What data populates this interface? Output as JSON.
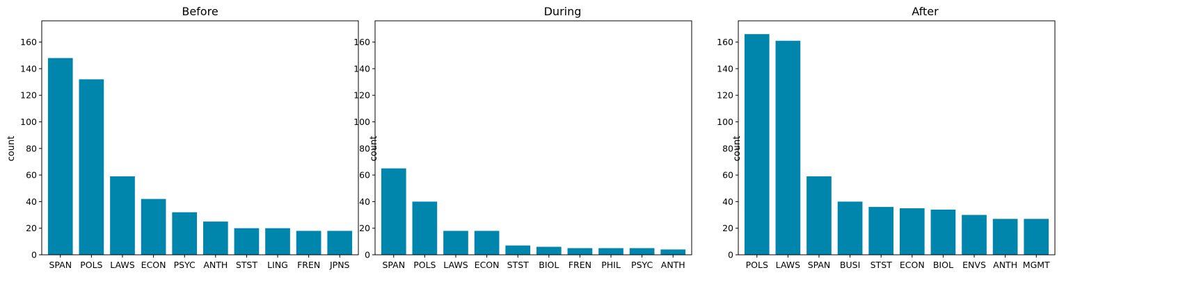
{
  "chart_data": [
    {
      "type": "bar",
      "title": "Before",
      "xlabel": "",
      "ylabel": "count",
      "categories": [
        "SPAN",
        "POLS",
        "LAWS",
        "ECON",
        "PSYC",
        "ANTH",
        "STST",
        "LING",
        "FREN",
        "JPNS"
      ],
      "values": [
        148,
        132,
        59,
        42,
        32,
        25,
        20,
        20,
        18,
        18
      ],
      "ylim": [
        0,
        176
      ],
      "yticks": [
        0,
        20,
        40,
        60,
        80,
        100,
        120,
        140,
        160
      ],
      "color": "#0086ad",
      "grid": false
    },
    {
      "type": "bar",
      "title": "During",
      "xlabel": "",
      "ylabel": "count",
      "categories": [
        "SPAN",
        "POLS",
        "LAWS",
        "ECON",
        "STST",
        "BIOL",
        "FREN",
        "PHIL",
        "PSYC",
        "ANTH"
      ],
      "values": [
        65,
        40,
        18,
        18,
        7,
        6,
        5,
        5,
        5,
        4
      ],
      "ylim": [
        0,
        176
      ],
      "yticks": [
        0,
        20,
        40,
        60,
        80,
        100,
        120,
        140,
        160
      ],
      "color": "#0086ad",
      "grid": false
    },
    {
      "type": "bar",
      "title": "After",
      "xlabel": "",
      "ylabel": "count",
      "categories": [
        "POLS",
        "LAWS",
        "SPAN",
        "BUSI",
        "STST",
        "ECON",
        "BIOL",
        "ENVS",
        "ANTH",
        "MGMT"
      ],
      "values": [
        166,
        161,
        59,
        40,
        36,
        35,
        34,
        30,
        27,
        27
      ],
      "ylim": [
        0,
        176
      ],
      "yticks": [
        0,
        20,
        40,
        60,
        80,
        100,
        120,
        140,
        160
      ],
      "color": "#0086ad",
      "grid": false
    }
  ]
}
